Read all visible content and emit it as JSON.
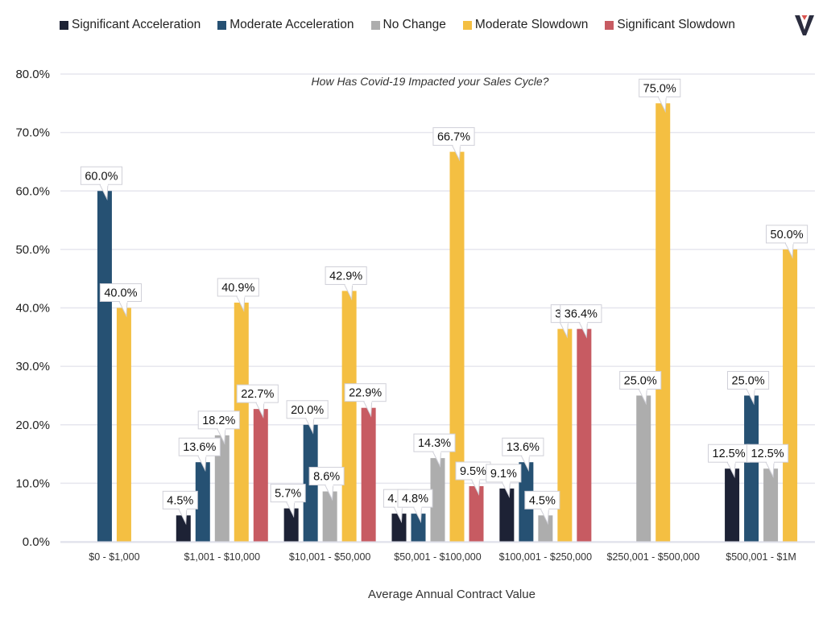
{
  "logo": {
    "name": "brand-v-logo",
    "colors": {
      "main": "#2b2d3f",
      "accent": "#d9534f"
    }
  },
  "chart_data": {
    "type": "bar",
    "title": "How Has Covid-19 Impacted your Sales Cycle?",
    "xlabel": "Average Annual Contract Value",
    "ylabel": "",
    "ylim": [
      0,
      80
    ],
    "yticks": [
      "0.0%",
      "10.0%",
      "20.0%",
      "30.0%",
      "40.0%",
      "50.0%",
      "60.0%",
      "70.0%",
      "80.0%"
    ],
    "grid": true,
    "legend_position": "top",
    "categories": [
      "$0 - $1,000",
      "$1,001 - $10,000",
      "$10,001 - $50,000",
      "$50,001 - $100,000",
      "$100,001 - $250,000",
      "$250,001 - $500,000",
      "$500,001 - $1M"
    ],
    "series": [
      {
        "name": "Significant Acceleration",
        "color": "#1d2235",
        "values": [
          0,
          4.5,
          5.7,
          4.8,
          9.1,
          0,
          12.5
        ],
        "labels": [
          null,
          "4.5%",
          "5.7%",
          "4.8",
          "9.1%",
          null,
          "12.5%"
        ]
      },
      {
        "name": "Moderate Acceleration",
        "color": "#265173",
        "values": [
          60.0,
          13.6,
          20.0,
          4.8,
          13.6,
          0,
          25.0
        ],
        "labels": [
          "60.0%",
          "13.6%",
          "20.0%",
          "4.8%",
          "13.6%",
          null,
          "25.0%"
        ]
      },
      {
        "name": "No Change",
        "color": "#adadad",
        "values": [
          0,
          18.2,
          8.6,
          14.3,
          4.5,
          25.0,
          12.5
        ],
        "labels": [
          null,
          "18.2%",
          "8.6%",
          "14.3%",
          "4.5%",
          "25.0%",
          "12.5%"
        ]
      },
      {
        "name": "Moderate Slowdown",
        "color": "#f4bf42",
        "values": [
          40.0,
          40.9,
          42.9,
          66.7,
          36.4,
          75.0,
          50.0
        ],
        "labels": [
          "40.0%",
          "40.9%",
          "42.9%",
          "66.7%",
          "36",
          "75.0%",
          "50.0%"
        ]
      },
      {
        "name": "Significant Slowdown",
        "color": "#c75b62",
        "values": [
          0,
          22.7,
          22.9,
          9.5,
          36.4,
          0,
          0
        ],
        "labels": [
          null,
          "22.7%",
          "22.9%",
          "9.5%",
          "36.4%",
          null,
          null
        ]
      }
    ]
  }
}
